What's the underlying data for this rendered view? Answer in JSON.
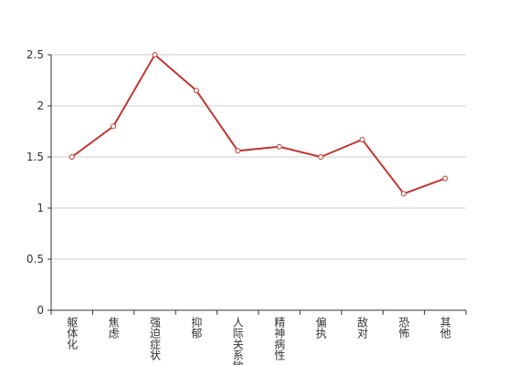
{
  "chart_data": {
    "type": "line",
    "categories": [
      "躯体化",
      "焦虑",
      "强迫症状",
      "抑郁",
      "人际关系敏感",
      "精神病性",
      "偏执",
      "敌对",
      "恐怖",
      "其他"
    ],
    "values": [
      1.5,
      1.8,
      2.5,
      2.15,
      1.56,
      1.6,
      1.5,
      1.67,
      1.14,
      1.29
    ],
    "color": "#c23531",
    "ylim": [
      0,
      2.5
    ],
    "yticks": [
      0,
      0.5,
      1,
      1.5,
      2,
      2.5
    ],
    "grid": true
  }
}
